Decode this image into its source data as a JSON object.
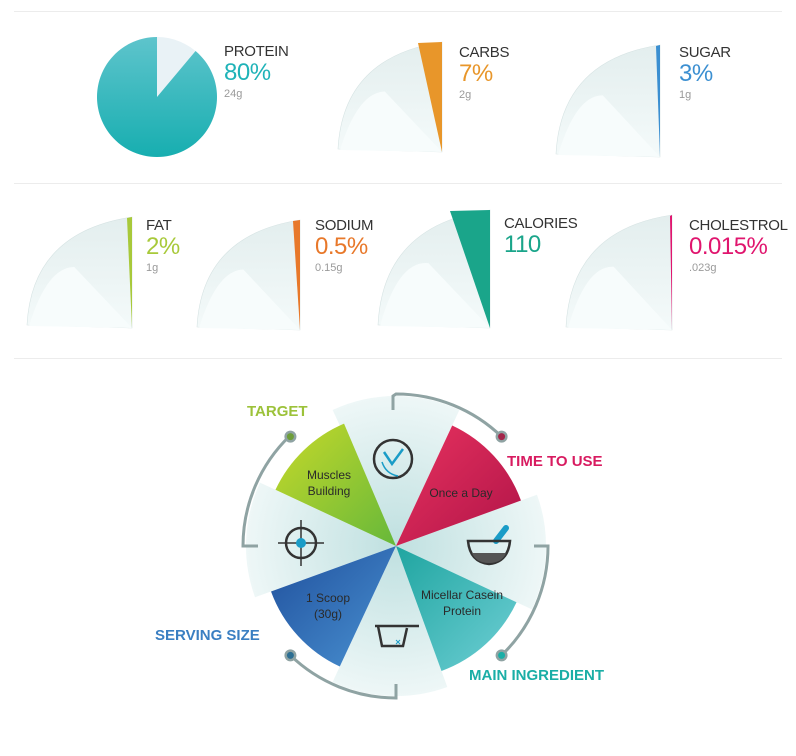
{
  "nutrition": [
    {
      "key": "protein",
      "name": "PROTEIN",
      "value": "80%",
      "amount": "24g",
      "color": "#1fb3b8"
    },
    {
      "key": "carbs",
      "name": "CARBS",
      "value": "7%",
      "amount": "2g",
      "color": "#e8962a"
    },
    {
      "key": "sugar",
      "name": "SUGAR",
      "value": "3%",
      "amount": "1g",
      "color": "#3b8fd1"
    },
    {
      "key": "fat",
      "name": "FAT",
      "value": "2%",
      "amount": "1g",
      "color": "#a8c93a"
    },
    {
      "key": "sodium",
      "name": "SODIUM",
      "value": "0.5%",
      "amount": "0.15g",
      "color": "#e8782a"
    },
    {
      "key": "calories",
      "name": "CALORIES",
      "value": "110",
      "amount": "",
      "color": "#1aa58a"
    },
    {
      "key": "cholesterol",
      "name": "CHOLESTROL",
      "value": "0.015%",
      "amount": ".023g",
      "color": "#e0156e"
    }
  ],
  "wheel": {
    "callouts": [
      {
        "key": "target",
        "label": "TARGET",
        "text": "Muscles Building",
        "color": "#9cc23a",
        "icon": "crosshair-icon"
      },
      {
        "key": "time",
        "label": "TIME TO USE",
        "text": "Once a Day",
        "color": "#d81b60",
        "icon": "clock-icon"
      },
      {
        "key": "ingredient",
        "label": "MAIN INGREDIENT",
        "text": "Micellar Casein Protein",
        "color": "#1aaea6",
        "icon": "mortar-bowl-icon"
      },
      {
        "key": "serving",
        "label": "SERVING SIZE",
        "text": "1 Scoop (30g)",
        "color": "#3a7fc2",
        "icon": "measuring-cup-icon"
      }
    ]
  },
  "chart_data": {
    "type": "pie",
    "categories": [
      "PROTEIN",
      "CARBS",
      "SUGAR",
      "FAT",
      "SODIUM",
      "CHOLESTROL"
    ],
    "values": [
      80,
      7,
      3,
      2,
      0.5,
      0.015
    ],
    "unit": "%",
    "amounts": [
      "24g",
      "2g",
      "1g",
      "1g",
      "0.15g",
      ".023g"
    ],
    "calories": 110
  }
}
